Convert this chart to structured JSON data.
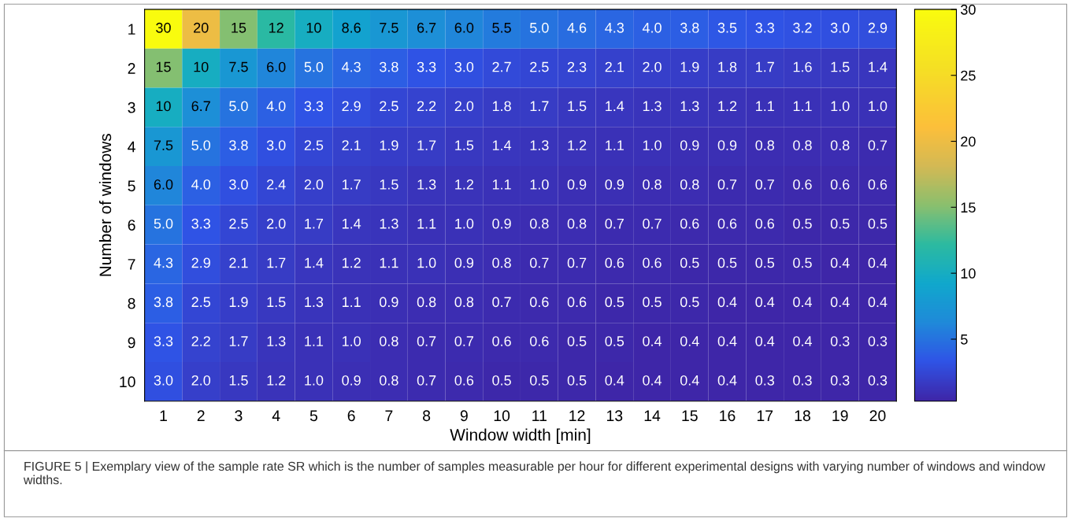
{
  "chart_data": {
    "type": "heatmap",
    "xlabel": "Window width [min]",
    "ylabel": "Number of windows",
    "categories": [
      "1",
      "2",
      "3",
      "4",
      "5",
      "6",
      "7",
      "8",
      "9",
      "10",
      "11",
      "12",
      "13",
      "14",
      "15",
      "16",
      "17",
      "18",
      "19",
      "20"
    ],
    "y_categories": [
      "1",
      "2",
      "3",
      "4",
      "5",
      "6",
      "7",
      "8",
      "9",
      "10"
    ],
    "cells": [
      [
        30,
        20,
        15,
        12,
        10,
        8.6,
        7.5,
        6.7,
        6.0,
        5.5,
        5.0,
        4.6,
        4.3,
        4.0,
        3.8,
        3.5,
        3.3,
        3.2,
        3.0,
        2.9
      ],
      [
        15,
        10,
        7.5,
        6.0,
        5.0,
        4.3,
        3.8,
        3.3,
        3.0,
        2.7,
        2.5,
        2.3,
        2.1,
        2.0,
        1.9,
        1.8,
        1.7,
        1.6,
        1.5,
        1.4
      ],
      [
        10,
        6.7,
        5.0,
        4.0,
        3.3,
        2.9,
        2.5,
        2.2,
        2.0,
        1.8,
        1.7,
        1.5,
        1.4,
        1.3,
        1.3,
        1.2,
        1.1,
        1.1,
        1.0,
        1.0
      ],
      [
        7.5,
        5.0,
        3.8,
        3.0,
        2.5,
        2.1,
        1.9,
        1.7,
        1.5,
        1.4,
        1.3,
        1.2,
        1.1,
        1.0,
        0.9,
        0.9,
        0.8,
        0.8,
        0.8,
        0.7
      ],
      [
        6.0,
        4.0,
        3.0,
        2.4,
        2.0,
        1.7,
        1.5,
        1.3,
        1.2,
        1.1,
        1.0,
        0.9,
        0.9,
        0.8,
        0.8,
        0.7,
        0.7,
        0.6,
        0.6,
        0.6
      ],
      [
        5.0,
        3.3,
        2.5,
        2.0,
        1.7,
        1.4,
        1.3,
        1.1,
        1.0,
        0.9,
        0.8,
        0.8,
        0.7,
        0.7,
        0.6,
        0.6,
        0.6,
        0.5,
        0.5,
        0.5
      ],
      [
        4.3,
        2.9,
        2.1,
        1.7,
        1.4,
        1.2,
        1.1,
        1.0,
        0.9,
        0.8,
        0.7,
        0.7,
        0.6,
        0.6,
        0.5,
        0.5,
        0.5,
        0.5,
        0.4,
        0.4
      ],
      [
        3.8,
        2.5,
        1.9,
        1.5,
        1.3,
        1.1,
        0.9,
        0.8,
        0.8,
        0.7,
        0.6,
        0.6,
        0.5,
        0.5,
        0.5,
        0.4,
        0.4,
        0.4,
        0.4,
        0.4
      ],
      [
        3.3,
        2.2,
        1.7,
        1.3,
        1.1,
        1.0,
        0.8,
        0.7,
        0.7,
        0.6,
        0.6,
        0.5,
        0.5,
        0.4,
        0.4,
        0.4,
        0.4,
        0.4,
        0.3,
        0.3
      ],
      [
        3.0,
        2.0,
        1.5,
        1.2,
        1.0,
        0.9,
        0.8,
        0.7,
        0.6,
        0.5,
        0.5,
        0.5,
        0.4,
        0.4,
        0.4,
        0.4,
        0.3,
        0.3,
        0.3,
        0.3
      ]
    ],
    "cell_labels": [
      [
        "30",
        "20",
        "15",
        "12",
        "10",
        "8.6",
        "7.5",
        "6.7",
        "6.0",
        "5.5",
        "5.0",
        "4.6",
        "4.3",
        "4.0",
        "3.8",
        "3.5",
        "3.3",
        "3.2",
        "3.0",
        "2.9"
      ],
      [
        "15",
        "10",
        "7.5",
        "6.0",
        "5.0",
        "4.3",
        "3.8",
        "3.3",
        "3.0",
        "2.7",
        "2.5",
        "2.3",
        "2.1",
        "2.0",
        "1.9",
        "1.8",
        "1.7",
        "1.6",
        "1.5",
        "1.4"
      ],
      [
        "10",
        "6.7",
        "5.0",
        "4.0",
        "3.3",
        "2.9",
        "2.5",
        "2.2",
        "2.0",
        "1.8",
        "1.7",
        "1.5",
        "1.4",
        "1.3",
        "1.3",
        "1.2",
        "1.1",
        "1.1",
        "1.0",
        "1.0"
      ],
      [
        "7.5",
        "5.0",
        "3.8",
        "3.0",
        "2.5",
        "2.1",
        "1.9",
        "1.7",
        "1.5",
        "1.4",
        "1.3",
        "1.2",
        "1.1",
        "1.0",
        "0.9",
        "0.9",
        "0.8",
        "0.8",
        "0.8",
        "0.7"
      ],
      [
        "6.0",
        "4.0",
        "3.0",
        "2.4",
        "2.0",
        "1.7",
        "1.5",
        "1.3",
        "1.2",
        "1.1",
        "1.0",
        "0.9",
        "0.9",
        "0.8",
        "0.8",
        "0.7",
        "0.7",
        "0.6",
        "0.6",
        "0.6"
      ],
      [
        "5.0",
        "3.3",
        "2.5",
        "2.0",
        "1.7",
        "1.4",
        "1.3",
        "1.1",
        "1.0",
        "0.9",
        "0.8",
        "0.8",
        "0.7",
        "0.7",
        "0.6",
        "0.6",
        "0.6",
        "0.5",
        "0.5",
        "0.5"
      ],
      [
        "4.3",
        "2.9",
        "2.1",
        "1.7",
        "1.4",
        "1.2",
        "1.1",
        "1.0",
        "0.9",
        "0.8",
        "0.7",
        "0.7",
        "0.6",
        "0.6",
        "0.5",
        "0.5",
        "0.5",
        "0.5",
        "0.4",
        "0.4"
      ],
      [
        "3.8",
        "2.5",
        "1.9",
        "1.5",
        "1.3",
        "1.1",
        "0.9",
        "0.8",
        "0.8",
        "0.7",
        "0.6",
        "0.6",
        "0.5",
        "0.5",
        "0.5",
        "0.4",
        "0.4",
        "0.4",
        "0.4",
        "0.4"
      ],
      [
        "3.3",
        "2.2",
        "1.7",
        "1.3",
        "1.1",
        "1.0",
        "0.8",
        "0.7",
        "0.7",
        "0.6",
        "0.6",
        "0.5",
        "0.5",
        "0.4",
        "0.4",
        "0.4",
        "0.4",
        "0.4",
        "0.3",
        "0.3"
      ],
      [
        "3.0",
        "2.0",
        "1.5",
        "1.2",
        "1.0",
        "0.9",
        "0.8",
        "0.7",
        "0.6",
        "0.5",
        "0.5",
        "0.5",
        "0.4",
        "0.4",
        "0.4",
        "0.4",
        "0.3",
        "0.3",
        "0.3",
        "0.3"
      ]
    ],
    "clim": [
      0.3,
      30
    ],
    "cticks": [
      5,
      10,
      15,
      20,
      25,
      30
    ],
    "annotations": [
      "FIGURE 5 | Exemplary view of the sample rate SR which is the number of samples measurable per hour for different experimental designs with varying number of windows and window widths."
    ]
  }
}
